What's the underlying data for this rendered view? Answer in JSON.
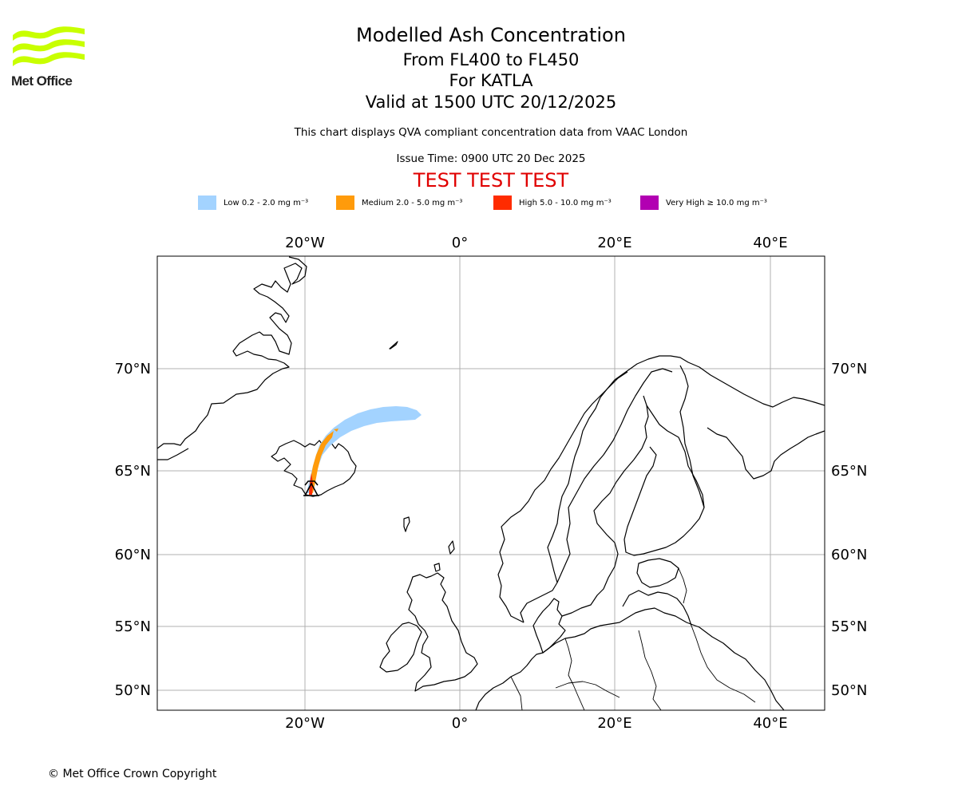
{
  "header": {
    "title": "Modelled Ash Concentration",
    "flight_levels": "From FL400 to FL450",
    "volcano": "For KATLA",
    "valid_time": "Valid at 1500 UTC 20/12/2025",
    "subtitle": "This chart displays QVA compliant concentration data from VAAC London",
    "issue_time": "Issue Time: 0900 UTC 20 Dec 2025",
    "test_banner": "TEST TEST TEST"
  },
  "logo": {
    "text": "Met Office",
    "icon": "met-office-wave-logo"
  },
  "legend": [
    {
      "label": "Low 0.2 - 2.0 mg m⁻³",
      "color": "#a3d3ff"
    },
    {
      "label": "Medium 2.0 - 5.0 mg m⁻³",
      "color": "#ff9b0b"
    },
    {
      "label": "High 5.0 - 10.0 mg m⁻³",
      "color": "#ff2c00"
    },
    {
      "label": "Very High ≥ 10.0 mg m⁻³",
      "color": "#b200b2"
    }
  ],
  "map": {
    "longitude_labels_top": [
      "20°W",
      "0°",
      "20°E",
      "40°E"
    ],
    "longitude_labels_bottom": [
      "20°W",
      "0°",
      "20°E",
      "40°E"
    ],
    "latitude_labels_left": [
      "70°N",
      "65°N",
      "60°N",
      "55°N",
      "50°N"
    ],
    "latitude_labels_right": [
      "70°N",
      "65°N",
      "60°N",
      "55°N",
      "50°N"
    ],
    "volcano_marker": "volcano-marker-icon",
    "colors": {
      "land_outline": "#000000",
      "grid": "#b0b0b0",
      "test": "#e00000"
    }
  },
  "footer": {
    "copyright": "© Met Office Crown Copyright"
  }
}
